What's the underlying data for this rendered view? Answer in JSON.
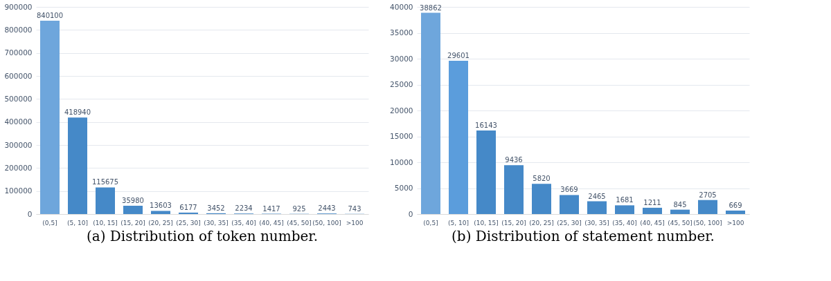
{
  "chart_data": [
    {
      "type": "bar",
      "title": "(a) Distribution of token number.",
      "categories": [
        "(0,5]",
        "(5, 10]",
        "(10, 15]",
        "(15, 20]",
        "(20, 25]",
        "(25, 30]",
        "(30, 35]",
        "(35, 40]",
        "(40, 45]",
        "(45, 50]",
        "(50, 100]",
        ">100"
      ],
      "values": [
        840100,
        418940,
        115675,
        35980,
        13603,
        6177,
        3452,
        2234,
        1417,
        925,
        2443,
        743
      ],
      "colors": [
        "#6ea6dc",
        "#4589c8",
        "#4589c8",
        "#4589c8",
        "#4589c8",
        "#4589c8",
        "#4589c8",
        "#4589c8",
        "#4589c8",
        "#4589c8",
        "#4589c8",
        "#4589c8"
      ],
      "ylim": [
        0,
        900000
      ],
      "yticks": [
        0,
        100000,
        200000,
        300000,
        400000,
        500000,
        600000,
        700000,
        800000,
        900000
      ],
      "grid": "y",
      "data_labels": true
    },
    {
      "type": "bar",
      "title": "(b) Distribution of statement number.",
      "categories": [
        "(0,5]",
        "(5, 10]",
        "(10, 15]",
        "(15, 20]",
        "(20, 25]",
        "(25, 30]",
        "(30, 35]",
        "(35, 40]",
        "(40, 45]",
        "(45, 50]",
        "(50, 100]",
        ">100"
      ],
      "values": [
        38862,
        29601,
        16143,
        9436,
        5820,
        3669,
        2465,
        1681,
        1211,
        845,
        2705,
        669
      ],
      "colors": [
        "#6ea6dc",
        "#5b9ddc",
        "#4589c8",
        "#4589c8",
        "#4589c8",
        "#4589c8",
        "#4589c8",
        "#4589c8",
        "#4589c8",
        "#4589c8",
        "#4589c8",
        "#4589c8"
      ],
      "ylim": [
        0,
        40000
      ],
      "yticks": [
        0,
        5000,
        10000,
        15000,
        20000,
        25000,
        30000,
        35000,
        40000
      ],
      "grid": "y",
      "data_labels": true
    }
  ]
}
